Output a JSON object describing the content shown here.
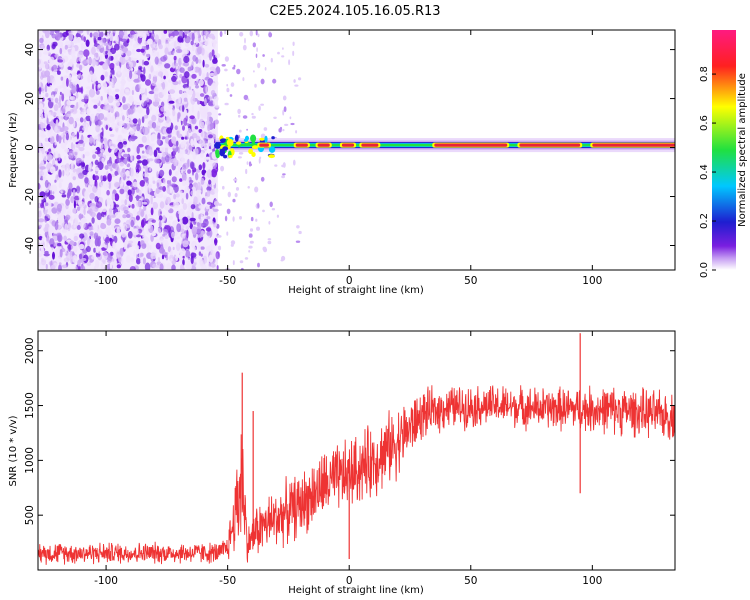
{
  "title": "C2E5.2024.105.16.05.R13",
  "colors": {
    "snr_line": "#ee3333",
    "noise_purple": "#7a1fe0",
    "ridge_core": "#e8213a",
    "axis": "#000000"
  },
  "chart_data": [
    {
      "type": "heatmap",
      "xlabel": "Height of straight line (km)",
      "ylabel": "Frequency (Hz)",
      "xlim": [
        -128,
        134
      ],
      "ylim": [
        -50,
        48
      ],
      "x_ticks": [
        -100,
        -50,
        0,
        50,
        100
      ],
      "y_ticks": [
        -40,
        -20,
        0,
        20,
        40
      ],
      "noise_region_x": [
        -128,
        -54
      ],
      "scattered_region_x": [
        -54,
        -20
      ],
      "ridge": {
        "x_start": -55,
        "x_end": 134,
        "center_frequency": 1,
        "core_segments": [
          {
            "x": [
              -37,
              -33
            ]
          },
          {
            "x": [
              -22,
              -17
            ]
          },
          {
            "x": [
              -13,
              -8
            ]
          },
          {
            "x": [
              -3,
              2
            ]
          },
          {
            "x": [
              5,
              12
            ]
          },
          {
            "x": [
              35,
              65
            ]
          },
          {
            "x": [
              70,
              95
            ]
          },
          {
            "x": [
              100,
              134
            ]
          }
        ]
      },
      "colorbar": {
        "label": "Normalized spectral amplitude",
        "ticks": [
          "0.0",
          "0.2",
          "0.4",
          "0.6",
          "0.8"
        ],
        "tick_values": [
          0.0,
          0.2,
          0.4,
          0.6,
          0.8
        ],
        "range": [
          0,
          0.98
        ],
        "colormap": [
          "#ffffff",
          "#7a1fe0",
          "#1e1ed0",
          "#00c8ff",
          "#20e040",
          "#ffff00",
          "#ff2020",
          "#ff1a80"
        ]
      }
    },
    {
      "type": "line",
      "xlabel": "Height of straight line (km)",
      "ylabel": "SNR (10 * v/v)",
      "xlim": [
        -128,
        134
      ],
      "ylim": [
        0,
        2180
      ],
      "x_ticks": [
        -100,
        -50,
        0,
        50,
        100
      ],
      "y_ticks": [
        500,
        1000,
        1500,
        2000
      ],
      "envelope": [
        {
          "x": -128,
          "low": 40,
          "high": 270
        },
        {
          "x": -53,
          "low": 40,
          "high": 270
        },
        {
          "x": -50,
          "low": 60,
          "high": 360
        },
        {
          "x": -47,
          "low": 80,
          "high": 900
        },
        {
          "x": -44,
          "low": 60,
          "high": 1750
        },
        {
          "x": -42,
          "low": 50,
          "high": 400
        },
        {
          "x": -38,
          "low": 80,
          "high": 650
        },
        {
          "x": -30,
          "low": 150,
          "high": 800
        },
        {
          "x": -20,
          "low": 250,
          "high": 950
        },
        {
          "x": -10,
          "low": 400,
          "high": 1150
        },
        {
          "x": 0,
          "low": 500,
          "high": 1250
        },
        {
          "x": 10,
          "low": 600,
          "high": 1400
        },
        {
          "x": 20,
          "low": 800,
          "high": 1550
        },
        {
          "x": 30,
          "low": 1150,
          "high": 1680
        },
        {
          "x": 40,
          "low": 1250,
          "high": 1720
        },
        {
          "x": 60,
          "low": 1280,
          "high": 1720
        },
        {
          "x": 80,
          "low": 1250,
          "high": 1700
        },
        {
          "x": 110,
          "low": 1200,
          "high": 1720
        },
        {
          "x": 134,
          "low": 1150,
          "high": 1650
        }
      ],
      "spikes": [
        {
          "x": -44,
          "value": 1800
        },
        {
          "x": -39.5,
          "value": 1450
        },
        {
          "x": 0,
          "value": 100
        },
        {
          "x": 95,
          "value": 2160
        },
        {
          "x": 95,
          "value": 700
        }
      ]
    }
  ]
}
